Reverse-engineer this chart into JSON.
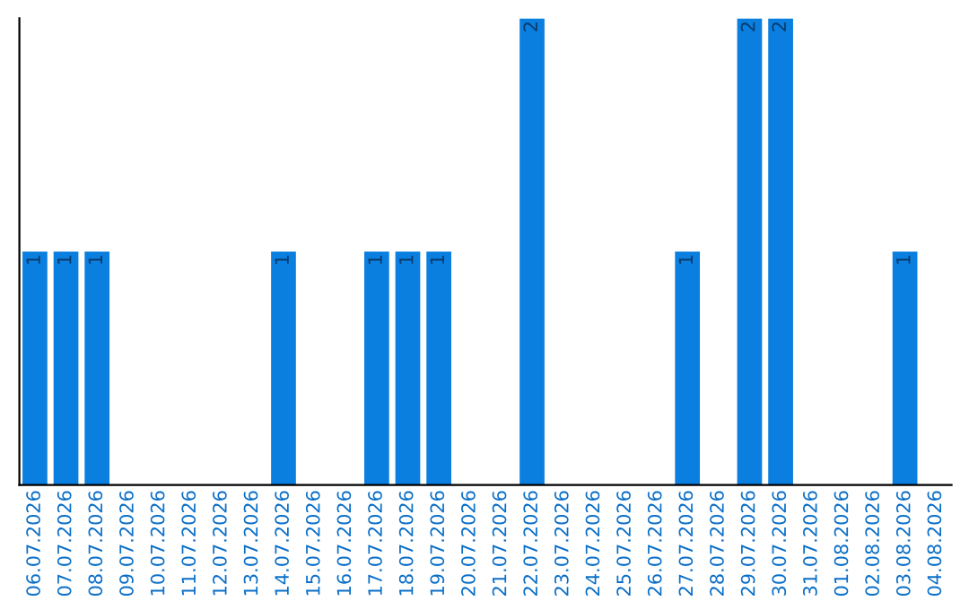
{
  "chart_data": {
    "type": "bar",
    "categories": [
      "06.07.2026",
      "07.07.2026",
      "08.07.2026",
      "09.07.2026",
      "10.07.2026",
      "11.07.2026",
      "12.07.2026",
      "13.07.2026",
      "14.07.2026",
      "15.07.2026",
      "16.07.2026",
      "17.07.2026",
      "18.07.2026",
      "19.07.2026",
      "20.07.2026",
      "21.07.2026",
      "22.07.2026",
      "23.07.2026",
      "24.07.2026",
      "25.07.2026",
      "26.07.2026",
      "27.07.2026",
      "28.07.2026",
      "29.07.2026",
      "30.07.2026",
      "31.07.2026",
      "01.08.2026",
      "02.08.2026",
      "03.08.2026",
      "04.08.2026"
    ],
    "values": [
      1,
      1,
      1,
      0,
      0,
      0,
      0,
      0,
      1,
      0,
      0,
      1,
      1,
      1,
      0,
      0,
      2,
      0,
      0,
      0,
      0,
      1,
      0,
      2,
      2,
      0,
      0,
      0,
      1,
      0
    ],
    "value_labels": [
      "1",
      "1",
      "1",
      null,
      null,
      null,
      null,
      null,
      "1",
      null,
      null,
      "1",
      "1",
      "1",
      null,
      null,
      "2",
      null,
      null,
      null,
      null,
      "1",
      null,
      "2",
      "2",
      null,
      null,
      null,
      "1",
      null
    ],
    "color": "#0a7fe0",
    "ylim": [
      0,
      2
    ],
    "tick_labels": "x",
    "grid": false,
    "legend": false
  }
}
